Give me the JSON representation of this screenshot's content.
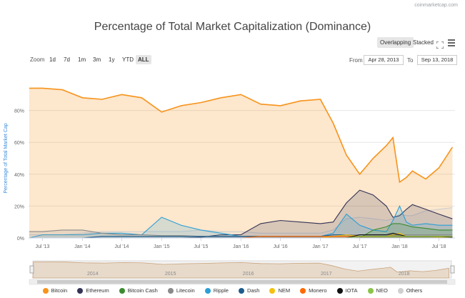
{
  "credit": "coinmarketcap.com",
  "title": "Percentage of Total Market Capitalization (Dominance)",
  "controls": {
    "overlapping": "Overlapping",
    "stacked": "Stacked",
    "active": "overlapping"
  },
  "zoom": {
    "label": "Zoom",
    "options": [
      "1d",
      "7d",
      "1m",
      "3m",
      "1y",
      "YTD",
      "ALL"
    ],
    "active": "ALL"
  },
  "range": {
    "from_label": "From",
    "from_value": "Apr 28, 2013",
    "to_label": "To",
    "to_value": "Sep 13, 2018"
  },
  "colors": {
    "bitcoin": "#f7931a",
    "ethereum": "#333355",
    "bitcoin_cash": "#3a8b2e",
    "litecoin": "#8a8a8a",
    "ripple": "#2b9fd6",
    "dash": "#1c5c8c",
    "nem": "#f4c20d",
    "monero": "#ff6a00",
    "iota": "#111111",
    "neo": "#8bc34a",
    "others": "#cfcfcf"
  },
  "chart_data": {
    "type": "area",
    "title": "Percentage of Total Market Capitalization (Dominance)",
    "ylabel": "Percentage of Total Market Cap",
    "ylim": [
      0,
      100
    ],
    "y_ticks": [
      "0%",
      "20%",
      "40%",
      "60%",
      "80%"
    ],
    "x_ticks": [
      "Jul '13",
      "Jan '14",
      "Jul '14",
      "Jan '15",
      "Jul '15",
      "Jan '16",
      "Jul '16",
      "Jan '17",
      "Jul '17",
      "Jan '18",
      "Jul '18"
    ],
    "navigator_ticks": [
      "2014",
      "2015",
      "2016",
      "2017",
      "2018"
    ],
    "x": [
      "2013-05",
      "2013-07",
      "2013-10",
      "2014-01",
      "2014-04",
      "2014-07",
      "2014-10",
      "2015-01",
      "2015-04",
      "2015-07",
      "2015-10",
      "2016-01",
      "2016-04",
      "2016-07",
      "2016-10",
      "2017-01",
      "2017-03",
      "2017-05",
      "2017-07",
      "2017-09",
      "2017-11",
      "2017-12",
      "2018-01",
      "2018-02",
      "2018-03",
      "2018-05",
      "2018-07",
      "2018-09"
    ],
    "series": [
      {
        "name": "Bitcoin",
        "color": "#f7931a",
        "values": [
          94,
          94,
          93,
          88,
          87,
          90,
          88,
          79,
          83,
          85,
          88,
          90,
          84,
          83,
          86,
          87,
          72,
          52,
          40,
          50,
          58,
          63,
          35,
          38,
          42,
          37,
          44,
          57
        ]
      },
      {
        "name": "Ethereum",
        "color": "#333355",
        "values": [
          0,
          0,
          0,
          0,
          0,
          0,
          0,
          0,
          0,
          0.5,
          2,
          2,
          9,
          11,
          10,
          9,
          10,
          22,
          30,
          27,
          20,
          13,
          14,
          18,
          21,
          18,
          15,
          12
        ]
      },
      {
        "name": "Bitcoin Cash",
        "color": "#3a8b2e",
        "values": [
          0,
          0,
          0,
          0,
          0,
          0,
          0,
          0,
          0,
          0,
          0,
          0,
          0,
          0,
          0,
          0,
          0,
          0,
          0,
          5,
          7,
          9,
          9,
          8,
          7,
          6,
          5,
          5
        ]
      },
      {
        "name": "Litecoin",
        "color": "#8a8a8a",
        "values": [
          4,
          4,
          5,
          5,
          3,
          2,
          2,
          1.5,
          1.5,
          1,
          1,
          1,
          1,
          1,
          1,
          1,
          1,
          2,
          2,
          2,
          2,
          2,
          2,
          2,
          2,
          2,
          2,
          2
        ]
      },
      {
        "name": "Ripple",
        "color": "#2b9fd6",
        "values": [
          0,
          2,
          2,
          2,
          3,
          3,
          2,
          13,
          8,
          5,
          3,
          1,
          1,
          1,
          1,
          1,
          3,
          15,
          8,
          5,
          4,
          11,
          20,
          10,
          8,
          9,
          8,
          8
        ]
      },
      {
        "name": "Dash",
        "color": "#1c5c8c",
        "values": [
          0,
          0,
          0,
          0,
          1,
          1,
          1,
          1,
          1,
          1,
          1,
          1,
          1,
          1,
          1,
          1,
          2,
          2,
          1,
          1,
          1,
          1,
          1,
          1,
          1,
          1,
          1,
          1
        ]
      },
      {
        "name": "NEM",
        "color": "#f4c20d",
        "values": [
          0,
          0,
          0,
          0,
          0,
          0,
          0,
          0,
          0,
          0,
          0,
          0,
          0,
          0,
          0,
          0,
          1,
          2,
          1,
          1,
          1,
          2,
          3,
          1,
          1,
          1,
          0.5,
          0.5
        ]
      },
      {
        "name": "Monero",
        "color": "#ff6a00",
        "values": [
          0,
          0,
          0,
          0,
          0,
          0,
          0,
          0,
          0,
          0,
          0,
          0,
          1,
          1,
          1,
          1,
          1,
          1,
          1,
          1,
          1,
          1,
          1,
          1,
          1,
          1,
          1,
          1
        ]
      },
      {
        "name": "IOTA",
        "color": "#111111",
        "values": [
          0,
          0,
          0,
          0,
          0,
          0,
          0,
          0,
          0,
          0,
          0,
          0,
          0,
          0,
          0,
          0,
          0,
          0,
          2,
          2,
          2,
          3,
          2,
          1,
          1,
          1,
          1,
          0.5
        ]
      },
      {
        "name": "NEO",
        "color": "#8bc34a",
        "values": [
          0,
          0,
          0,
          0,
          0,
          0,
          0,
          0,
          0,
          0,
          0,
          0,
          0,
          0,
          0,
          0,
          0,
          0,
          1,
          1,
          1,
          1,
          1,
          1,
          1,
          1,
          1,
          1
        ]
      },
      {
        "name": "Others",
        "color": "#cfcfcf",
        "values": [
          2,
          2,
          2,
          3,
          4,
          4,
          4,
          4,
          4,
          5,
          4,
          4,
          3,
          3,
          3,
          3,
          5,
          12,
          13,
          12,
          11,
          12,
          15,
          14,
          14,
          17,
          18,
          19
        ]
      }
    ],
    "grid": true,
    "legend_position": "bottom"
  }
}
